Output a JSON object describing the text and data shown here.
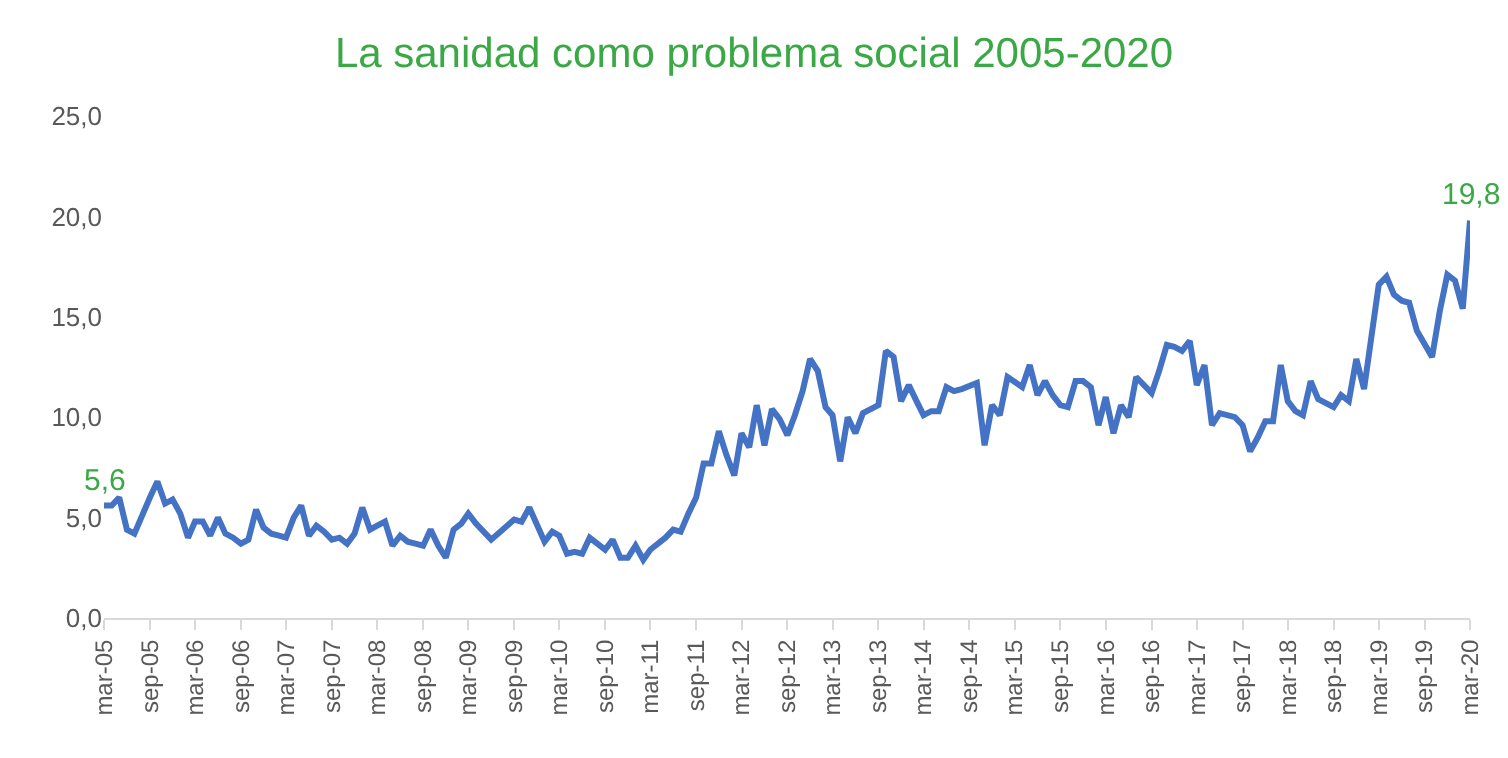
{
  "chart_data": {
    "type": "line",
    "title": "La sanidad como problema social 2005-2020",
    "x": [
      "2005-03",
      "2005-04",
      "2005-05",
      "2005-06",
      "2005-07",
      "2005-09",
      "2005-10",
      "2005-11",
      "2005-12",
      "2006-01",
      "2006-02",
      "2006-03",
      "2006-04",
      "2006-05",
      "2006-06",
      "2006-07",
      "2006-08",
      "2006-09",
      "2006-10",
      "2006-11",
      "2006-12",
      "2007-01",
      "2007-02",
      "2007-03",
      "2007-04",
      "2007-05",
      "2007-06",
      "2007-07",
      "2007-08",
      "2007-09",
      "2007-10",
      "2007-11",
      "2007-12",
      "2008-01",
      "2008-02",
      "2008-03",
      "2008-04",
      "2008-05",
      "2008-06",
      "2008-07",
      "2008-08",
      "2008-09",
      "2008-10",
      "2008-11",
      "2008-12",
      "2009-01",
      "2009-02",
      "2009-03",
      "2009-04",
      "2009-06",
      "2009-09",
      "2009-10",
      "2009-11",
      "2010-01",
      "2010-02",
      "2010-03",
      "2010-04",
      "2010-05",
      "2010-06",
      "2010-07",
      "2010-09",
      "2010-10",
      "2010-11",
      "2010-12",
      "2011-01",
      "2011-02",
      "2011-03",
      "2011-05",
      "2011-06",
      "2011-07",
      "2011-08",
      "2011-09",
      "2011-10",
      "2011-11",
      "2011-12",
      "2012-01",
      "2012-02",
      "2012-03",
      "2012-04",
      "2012-05",
      "2012-06",
      "2012-07",
      "2012-08",
      "2012-09",
      "2012-10",
      "2012-11",
      "2012-12",
      "2013-01",
      "2013-02",
      "2013-03",
      "2013-04",
      "2013-05",
      "2013-06",
      "2013-07",
      "2013-08",
      "2013-09",
      "2013-10",
      "2013-11",
      "2013-12",
      "2014-01",
      "2014-02",
      "2014-03",
      "2014-04",
      "2014-05",
      "2014-06",
      "2014-07",
      "2014-08",
      "2014-10",
      "2014-11",
      "2014-12",
      "2015-01",
      "2015-02",
      "2015-04",
      "2015-05",
      "2015-06",
      "2015-07",
      "2015-08",
      "2015-09",
      "2015-10",
      "2015-11",
      "2015-12",
      "2016-01",
      "2016-02",
      "2016-03",
      "2016-04",
      "2016-05",
      "2016-06",
      "2016-07",
      "2016-09",
      "2016-10",
      "2016-11",
      "2016-12",
      "2017-01",
      "2017-02",
      "2017-03",
      "2017-04",
      "2017-05",
      "2017-06",
      "2017-08",
      "2017-09",
      "2017-10",
      "2017-11",
      "2017-12",
      "2018-01",
      "2018-02",
      "2018-03",
      "2018-04",
      "2018-05",
      "2018-06",
      "2018-07",
      "2018-09",
      "2018-10",
      "2018-11",
      "2018-12",
      "2019-01",
      "2019-03",
      "2019-04",
      "2019-05",
      "2019-06",
      "2019-07",
      "2019-08",
      "2019-10",
      "2019-11",
      "2019-12",
      "2020-01",
      "2020-02",
      "2020-03"
    ],
    "series": [
      {
        "color": "#4472c4",
        "values": [
          5.6,
          5.6,
          6.0,
          4.4,
          4.2,
          6.0,
          6.8,
          5.7,
          5.9,
          5.2,
          4.0,
          4.8,
          4.8,
          4.1,
          5.0,
          4.2,
          4.0,
          3.7,
          3.9,
          5.4,
          4.5,
          4.2,
          4.1,
          4.0,
          5.0,
          5.6,
          4.1,
          4.6,
          4.3,
          3.9,
          4.0,
          3.7,
          4.2,
          5.5,
          4.4,
          4.6,
          4.8,
          3.6,
          4.1,
          3.8,
          3.7,
          3.6,
          4.4,
          3.6,
          3.0,
          4.4,
          4.7,
          5.2,
          4.7,
          3.9,
          4.9,
          4.8,
          5.5,
          3.8,
          4.3,
          4.1,
          3.2,
          3.3,
          3.2,
          4.0,
          3.4,
          3.9,
          3.0,
          3.0,
          3.6,
          2.9,
          3.4,
          4.0,
          4.4,
          4.3,
          5.2,
          6.0,
          7.7,
          7.7,
          9.3,
          8.1,
          7.1,
          9.2,
          8.5,
          10.6,
          8.6,
          10.4,
          9.9,
          9.1,
          10.1,
          11.3,
          12.9,
          12.3,
          10.5,
          10.1,
          7.8,
          10.0,
          9.2,
          10.2,
          10.4,
          10.6,
          13.3,
          13.0,
          10.8,
          11.6,
          10.8,
          10.1,
          10.3,
          10.3,
          11.5,
          11.3,
          11.4,
          11.7,
          8.6,
          10.6,
          10.1,
          12.0,
          11.5,
          12.6,
          11.1,
          11.8,
          11.1,
          10.6,
          10.5,
          11.8,
          11.8,
          11.5,
          9.6,
          11.0,
          9.2,
          10.6,
          10.0,
          12.0,
          11.2,
          12.3,
          13.6,
          13.5,
          13.3,
          13.8,
          11.6,
          12.6,
          9.6,
          10.2,
          10.0,
          9.6,
          8.3,
          9.0,
          9.8,
          9.8,
          12.6,
          10.8,
          10.3,
          10.1,
          11.8,
          10.9,
          10.5,
          11.1,
          10.8,
          12.9,
          11.4,
          16.6,
          17.0,
          16.1,
          15.8,
          15.7,
          14.3,
          13.0,
          15.3,
          17.1,
          16.8,
          15.4,
          19.8
        ]
      }
    ],
    "xlim": [
      "2005-03",
      "2020-03"
    ],
    "xticks": [
      {
        "value": "2005-03",
        "label": "mar-05"
      },
      {
        "value": "2005-09",
        "label": "sep-05"
      },
      {
        "value": "2006-03",
        "label": "mar-06"
      },
      {
        "value": "2006-09",
        "label": "sep-06"
      },
      {
        "value": "2007-03",
        "label": "mar-07"
      },
      {
        "value": "2007-09",
        "label": "sep-07"
      },
      {
        "value": "2008-03",
        "label": "mar-08"
      },
      {
        "value": "2008-09",
        "label": "sep-08"
      },
      {
        "value": "2009-03",
        "label": "mar-09"
      },
      {
        "value": "2009-09",
        "label": "sep-09"
      },
      {
        "value": "2010-03",
        "label": "mar-10"
      },
      {
        "value": "2010-09",
        "label": "sep-10"
      },
      {
        "value": "2011-03",
        "label": "mar-11"
      },
      {
        "value": "2011-09",
        "label": "sep-11"
      },
      {
        "value": "2012-03",
        "label": "mar-12"
      },
      {
        "value": "2012-09",
        "label": "sep-12"
      },
      {
        "value": "2013-03",
        "label": "mar-13"
      },
      {
        "value": "2013-09",
        "label": "sep-13"
      },
      {
        "value": "2014-03",
        "label": "mar-14"
      },
      {
        "value": "2014-09",
        "label": "sep-14"
      },
      {
        "value": "2015-03",
        "label": "mar-15"
      },
      {
        "value": "2015-09",
        "label": "sep-15"
      },
      {
        "value": "2016-03",
        "label": "mar-16"
      },
      {
        "value": "2016-09",
        "label": "sep-16"
      },
      {
        "value": "2017-03",
        "label": "mar-17"
      },
      {
        "value": "2017-09",
        "label": "sep-17"
      },
      {
        "value": "2018-03",
        "label": "mar-18"
      },
      {
        "value": "2018-09",
        "label": "sep-18"
      },
      {
        "value": "2019-03",
        "label": "mar-19"
      },
      {
        "value": "2019-09",
        "label": "sep-19"
      },
      {
        "value": "2020-03",
        "label": "mar-20"
      }
    ],
    "ylim": [
      0,
      25
    ],
    "yticks": [
      {
        "value": 0,
        "label": "0,0"
      },
      {
        "value": 5,
        "label": "5,0"
      },
      {
        "value": 10,
        "label": "10,0"
      },
      {
        "value": 15,
        "label": "15,0"
      },
      {
        "value": 20,
        "label": "20,0"
      },
      {
        "value": 25,
        "label": "25,0"
      }
    ],
    "annotations": [
      {
        "text": "5,6",
        "x": "2005-03",
        "y": 5.6
      },
      {
        "text": "19,8",
        "x": "2020-03",
        "y": 19.8
      }
    ],
    "grid": false,
    "marker": "none",
    "line_style": "solid"
  }
}
